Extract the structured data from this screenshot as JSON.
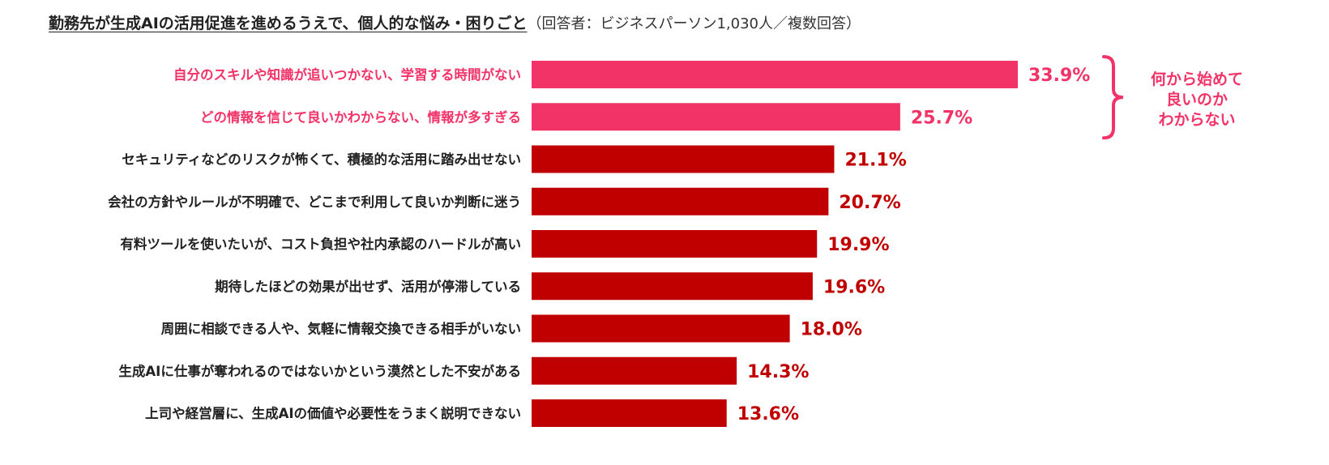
{
  "chart_data": {
    "type": "bar",
    "orientation": "horizontal",
    "title": "勤務先が生成AIの活用促進を進めるうえで、個人的な悩み・困りごと",
    "subtitle": "（回答者：ビジネスパーソン1,030人／複数回答）",
    "categories": [
      "自分のスキルや知識が追いつかない、学習する時間がない",
      "どの情報を信じて良いかわからない、情報が多すぎる",
      "セキュリティなどのリスクが怖くて、積極的な活用に踏み出せない",
      "会社の方針やルールが不明確で、どこまで利用して良いか判断に迷う",
      "有料ツールを使いたいが、コスト負担や社内承認のハードルが高い",
      "期待したほどの効果が出せず、活用が停滞している",
      "周囲に相談できる人や、気軽に情報交換できる相手がいない",
      "生成AIに仕事が奪われるのではないかという漠然とした不安がある",
      "上司や経営層に、生成AIの価値や必要性をうまく説明できない"
    ],
    "values": [
      33.9,
      25.7,
      21.1,
      20.7,
      19.9,
      19.6,
      18.0,
      14.3,
      13.6
    ],
    "value_labels": [
      "33.9%",
      "25.7%",
      "21.1%",
      "20.7%",
      "19.9%",
      "19.6%",
      "18.0%",
      "14.3%",
      "13.6%"
    ],
    "highlighted": [
      true,
      true,
      false,
      false,
      false,
      false,
      false,
      false,
      false
    ],
    "annotation": {
      "lines": [
        "何から始めて",
        "良いのか",
        "わからない"
      ],
      "brackets_categories": [
        0,
        1
      ]
    },
    "xlim": [
      0,
      34
    ],
    "grid": false,
    "colors": {
      "highlight": "#f23368",
      "default": "#c00000",
      "label_default": "#222222"
    }
  }
}
